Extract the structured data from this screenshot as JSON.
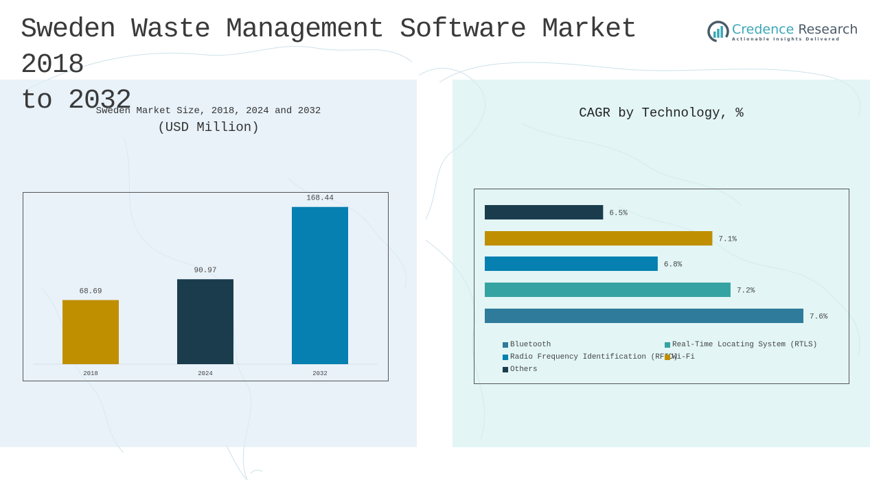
{
  "page": {
    "title": "Sweden Waste Management Software Market 2018 to 2032",
    "title_line1": "Sweden Waste Management Software Market 2018",
    "title_line2": "to 2032"
  },
  "logo": {
    "name_part1": "Credence",
    "name_part2": " Research",
    "tagline": "Actionable Insights Delivered",
    "icon": "bar-chart-circle-icon"
  },
  "chart_data": [
    {
      "type": "bar",
      "title": "Sweden Market Size, 2018, 2024 and 2032",
      "subtitle": "(USD Million)",
      "categories": [
        "2018",
        "2024",
        "2032"
      ],
      "values": [
        68.69,
        90.97,
        168.44
      ],
      "value_labels": [
        "68.69",
        "90.97",
        "168.44"
      ],
      "colors": [
        "#c08f00",
        "#1a3c4d",
        "#0580b0"
      ],
      "xlabel": "",
      "ylabel": "",
      "ylim": [
        0,
        180
      ],
      "grid": false,
      "legend": "none"
    },
    {
      "type": "bar",
      "orientation": "horizontal",
      "title": "CAGR by Technology, %",
      "categories": [
        "Others",
        "Wi-Fi",
        "Radio Frequency Identification (RFID)",
        "Real-Time Locating System (RTLS)",
        "Bluetooth"
      ],
      "values": [
        6.5,
        7.1,
        6.8,
        7.2,
        7.6
      ],
      "value_labels": [
        "6.5%",
        "7.1%",
        "6.8%",
        "7.2%",
        "7.6%"
      ],
      "colors": [
        "#1a3c4d",
        "#c08f00",
        "#0580b0",
        "#36a3a3",
        "#2f7b9b"
      ],
      "xlim": [
        5.85,
        7.6
      ],
      "grid": false,
      "legend": "bottom",
      "legend_entries": [
        {
          "label": "Bluetooth",
          "color": "#2f7b9b"
        },
        {
          "label": "Real-Time Locating System (RTLS)",
          "color": "#36a3a3"
        },
        {
          "label": "Radio Frequency Identification (RFID)",
          "color": "#0580b0"
        },
        {
          "label": "Wi-Fi",
          "color": "#c08f00"
        },
        {
          "label": "Others",
          "color": "#1a3c4d"
        }
      ]
    }
  ]
}
